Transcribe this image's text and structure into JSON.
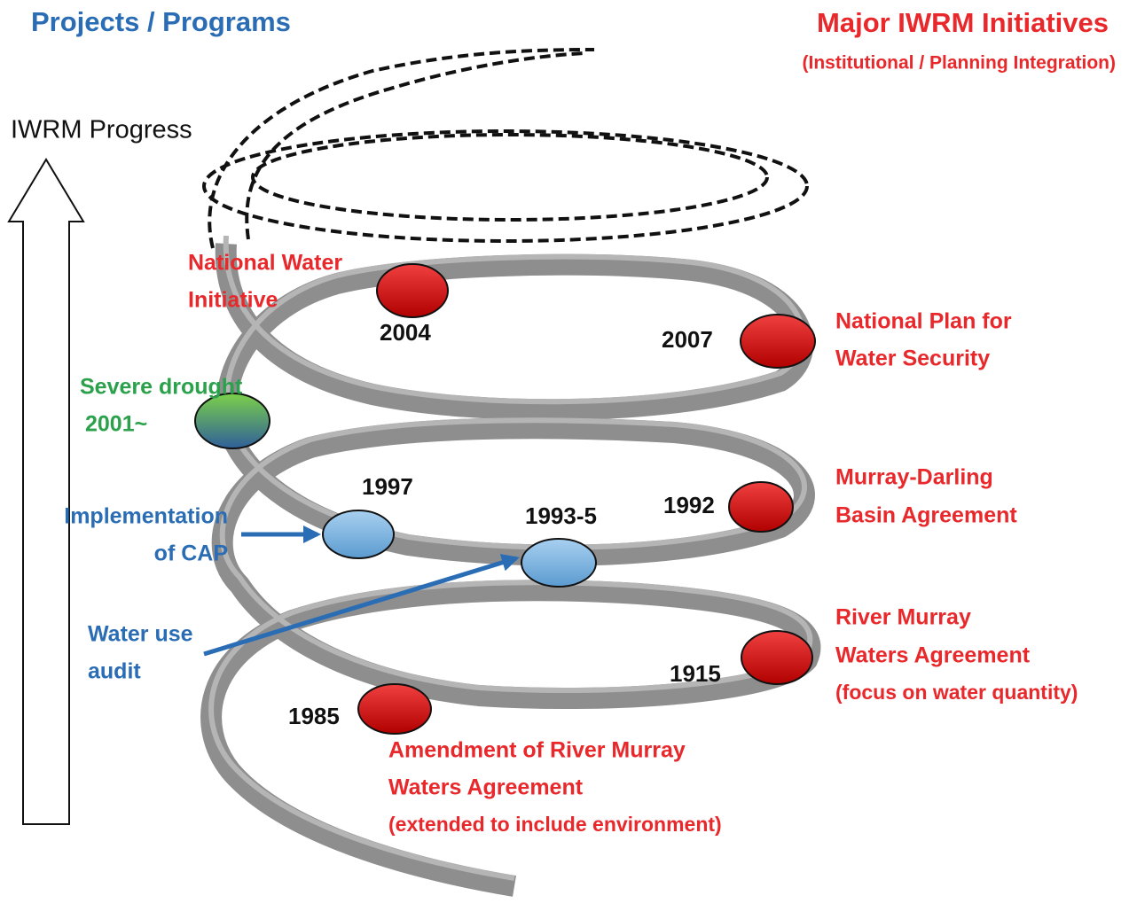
{
  "header": {
    "left_title": "Projects / Programs",
    "right_title": "Major IWRM Initiatives",
    "right_subtitle": "(Institutional / Planning Integration)"
  },
  "axis_label": "IWRM Progress",
  "initiatives": [
    {
      "year": "2004",
      "label": [
        "National Water",
        "Initiative"
      ]
    },
    {
      "year": "2007",
      "label": [
        "National Plan for",
        "Water Security"
      ]
    },
    {
      "year": "1992",
      "label": [
        "Murray-Darling",
        "Basin Agreement"
      ]
    },
    {
      "year": "1915",
      "label": [
        "River Murray",
        "Waters Agreement",
        "(focus on water quantity)"
      ]
    },
    {
      "year": "1985",
      "label": [
        "Amendment of River Murray",
        "Waters Agreement",
        "(extended to include environment)"
      ]
    }
  ],
  "programs": [
    {
      "label": [
        "Severe drought",
        "2001~"
      ]
    },
    {
      "year": "1997",
      "label": [
        "Implementation",
        "of CAP"
      ]
    },
    {
      "year": "1993-5",
      "label": [
        "Water use",
        "audit"
      ]
    }
  ]
}
